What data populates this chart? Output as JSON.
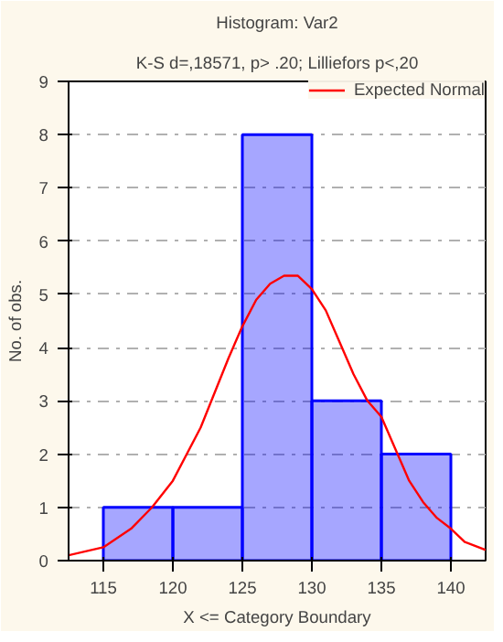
{
  "chart_data": {
    "type": "histogram",
    "title": "Histogram: Var2",
    "subtitle": "K-S d=,18571, p> .20; Lilliefors p<,20",
    "xlabel": "X <= Category Boundary",
    "ylabel": "No. of obs.",
    "bins": [
      115,
      120,
      125,
      130,
      135,
      140
    ],
    "values": [
      1,
      1,
      8,
      3,
      2
    ],
    "color": "#0000ff",
    "series": [
      {
        "name": "Expected Normal",
        "type": "line",
        "color": "#ff0000",
        "x": [
          112.5,
          115,
          117,
          118.5,
          120,
          122,
          124,
          125,
          126,
          127,
          128,
          129,
          130,
          131,
          132,
          133,
          134,
          135,
          136,
          137,
          138,
          139,
          140,
          141,
          142.5
        ],
        "values": [
          0.1,
          0.25,
          0.6,
          1.0,
          1.5,
          2.5,
          3.8,
          4.4,
          4.9,
          5.2,
          5.35,
          5.35,
          5.1,
          4.7,
          4.1,
          3.5,
          3.0,
          2.7,
          2.1,
          1.5,
          1.1,
          0.8,
          0.6,
          0.35,
          0.2
        ]
      }
    ],
    "xlim": [
      112.5,
      142.5
    ],
    "xticks": [
      115,
      120,
      125,
      130,
      135,
      140
    ],
    "ylim": [
      0,
      9
    ],
    "yticks": [
      0,
      1,
      2,
      3,
      4,
      5,
      6,
      7,
      8,
      9
    ],
    "grid": "y",
    "legend": "top right"
  }
}
